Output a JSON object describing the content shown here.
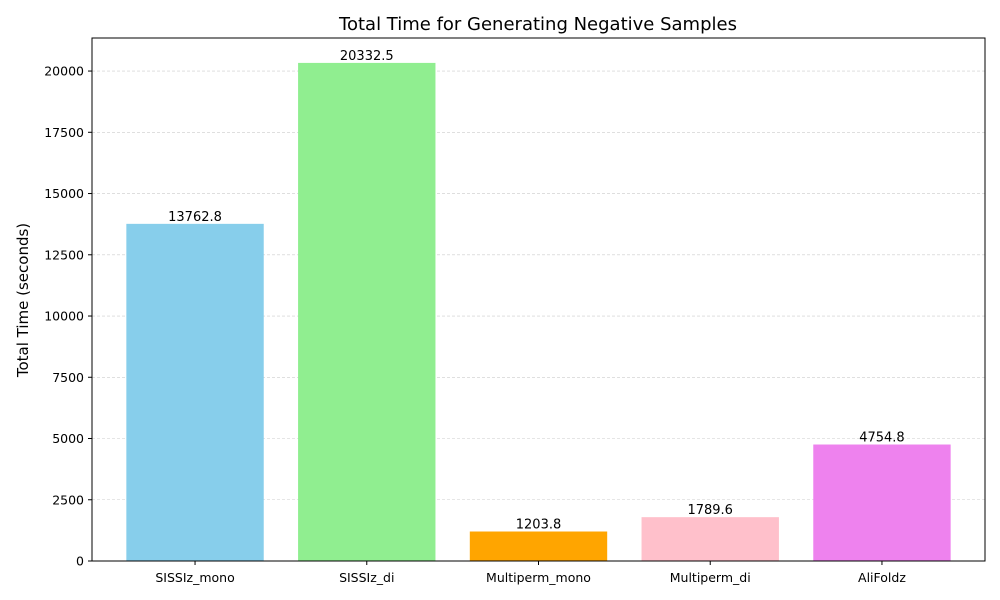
{
  "chart_data": {
    "type": "bar",
    "title": "Total Time for Generating Negative Samples",
    "xlabel": "",
    "ylabel": "Total Time (seconds)",
    "categories": [
      "SISSIz_mono",
      "SISSIz_di",
      "Multiperm_mono",
      "Multiperm_di",
      "AliFoldz"
    ],
    "values": [
      13762.8,
      20332.5,
      1203.8,
      1789.6,
      4754.8
    ],
    "data_labels": [
      "13762.8",
      "20332.5",
      "1203.8",
      "1789.6",
      "4754.8"
    ],
    "colors": [
      "#87ceeb",
      "#90ee90",
      "#ffa500",
      "#ffc0cb",
      "#ee82ee"
    ],
    "ylim": [
      0,
      21349
    ],
    "yticks": [
      0,
      2500,
      5000,
      7500,
      10000,
      12500,
      15000,
      17500,
      20000
    ],
    "ytick_labels": [
      "0",
      "2500",
      "5000",
      "7500",
      "10000",
      "12500",
      "15000",
      "17500",
      "20000"
    ],
    "grid": "y-dashed",
    "legend": "none"
  }
}
